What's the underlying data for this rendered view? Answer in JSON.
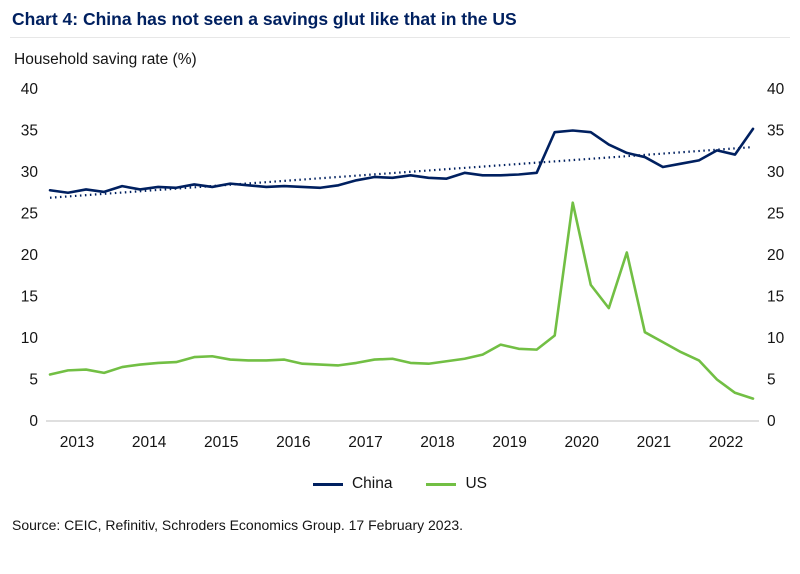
{
  "header": {
    "title": "Chart 4: China has not seen a savings glut like that in the US"
  },
  "chart_data": {
    "type": "line",
    "title": "Chart 4: China has not seen a savings glut like that in the US",
    "ylabel": "Household saving rate (%)",
    "xlabel": "",
    "ylim": [
      0,
      40
    ],
    "yticks": [
      0,
      5,
      10,
      15,
      20,
      25,
      30,
      35,
      40
    ],
    "xticks": [
      2013,
      2014,
      2015,
      2016,
      2017,
      2018,
      2019,
      2020,
      2021,
      2022
    ],
    "grid": false,
    "legend_position": "bottom",
    "x": [
      2013,
      2013.25,
      2013.5,
      2013.75,
      2014,
      2014.25,
      2014.5,
      2014.75,
      2015,
      2015.25,
      2015.5,
      2015.75,
      2016,
      2016.25,
      2016.5,
      2016.75,
      2017,
      2017.25,
      2017.5,
      2017.75,
      2018,
      2018.25,
      2018.5,
      2018.75,
      2019,
      2019.25,
      2019.5,
      2019.75,
      2020,
      2020.25,
      2020.5,
      2020.75,
      2021,
      2021.25,
      2021.5,
      2021.75,
      2022,
      2022.25,
      2022.5,
      2022.75
    ],
    "series": [
      {
        "name": "China",
        "color": "#002060",
        "values": [
          27.8,
          27.5,
          27.9,
          27.6,
          28.3,
          27.9,
          28.2,
          28.1,
          28.5,
          28.2,
          28.6,
          28.4,
          28.2,
          28.3,
          28.2,
          28.1,
          28.4,
          29.0,
          29.4,
          29.3,
          29.6,
          29.3,
          29.2,
          29.9,
          29.6,
          29.6,
          29.7,
          29.9,
          34.8,
          35.0,
          34.8,
          33.3,
          32.3,
          31.8,
          30.6,
          31.0,
          31.4,
          32.6,
          32.1,
          35.2
        ]
      },
      {
        "name": "US",
        "color": "#72BF44",
        "values": [
          5.6,
          6.1,
          6.2,
          5.8,
          6.5,
          6.8,
          7.0,
          7.1,
          7.7,
          7.8,
          7.4,
          7.3,
          7.3,
          7.4,
          6.9,
          6.8,
          6.7,
          7.0,
          7.4,
          7.5,
          7.0,
          6.9,
          7.2,
          7.5,
          8.0,
          9.2,
          8.7,
          8.6,
          10.3,
          26.3,
          16.4,
          13.6,
          20.3,
          10.7,
          9.5,
          8.3,
          7.3,
          5.0,
          3.4,
          2.7
        ]
      }
    ],
    "trendline": {
      "name": "China linear trend",
      "color": "#002060",
      "style": "dotted",
      "x": [
        2013,
        2022.75
      ],
      "y": [
        26.9,
        33.0
      ]
    }
  },
  "legend": [
    {
      "label": "China",
      "color": "#002060"
    },
    {
      "label": "US",
      "color": "#72BF44"
    }
  ],
  "source": "Source: CEIC, Refinitiv, Schroders Economics Group. 17 February 2023.",
  "colors": {
    "title": "#002060",
    "axis_text": "#141414",
    "baseline": "#bfbfbf"
  }
}
